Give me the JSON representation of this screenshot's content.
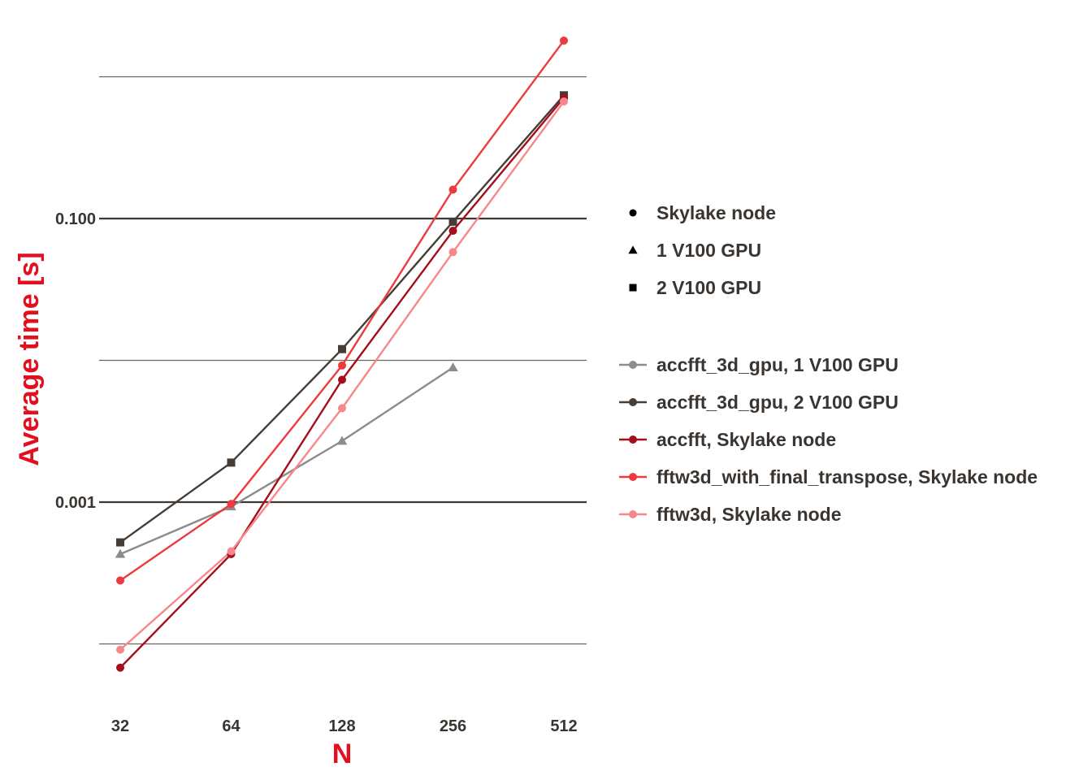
{
  "chart_data": {
    "type": "line",
    "xlabel": "N",
    "ylabel": "Average time [s]",
    "x_scale": "log2",
    "y_scale": "log10",
    "x": [
      32,
      64,
      128,
      256,
      512
    ],
    "x_tick_labels": [
      "32",
      "64",
      "128",
      "256",
      "512"
    ],
    "ylim": [
      2.75e-05,
      1.75
    ],
    "y_ticks": [
      {
        "value": 0.0001,
        "label": "",
        "major": false
      },
      {
        "value": 0.001,
        "label": "0.001",
        "major": true
      },
      {
        "value": 0.01,
        "label": "",
        "major": false
      },
      {
        "value": 0.1,
        "label": "0.100",
        "major": true
      },
      {
        "value": 1,
        "label": "",
        "major": false
      }
    ],
    "grid": "horizontal",
    "legend_position": "right",
    "marker_legend": [
      {
        "marker": "circle",
        "label": "Skylake node"
      },
      {
        "marker": "triangle",
        "label": "1 V100 GPU"
      },
      {
        "marker": "square",
        "label": "2 V100 GPU"
      }
    ],
    "series": [
      {
        "name": "accfft_3d_gpu, 1 V100 GPU",
        "color": "#8c8c8c",
        "marker": "triangle",
        "values": [
          0.00043,
          0.00093,
          0.0027,
          0.0089,
          null
        ]
      },
      {
        "name": "accfft_3d_gpu, 2 V100 GPU",
        "color": "#453d36",
        "marker": "square",
        "values": [
          0.00052,
          0.0019,
          0.012,
          0.095,
          0.74
        ]
      },
      {
        "name": "accfft,  Skylake node",
        "color": "#a50f1c",
        "marker": "circle",
        "values": [
          6.8e-05,
          0.00043,
          0.0073,
          0.082,
          0.71
        ]
      },
      {
        "name": "fftw3d_with_final_transpose,  Skylake node",
        "color": "#ee3a3d",
        "marker": "circle",
        "values": [
          0.00028,
          0.00097,
          0.0092,
          0.16,
          1.8
        ]
      },
      {
        "name": "fftw3d,  Skylake node",
        "color": "#f7878a",
        "marker": "circle",
        "values": [
          9.1e-05,
          0.00045,
          0.0046,
          0.058,
          0.67
        ]
      }
    ]
  }
}
